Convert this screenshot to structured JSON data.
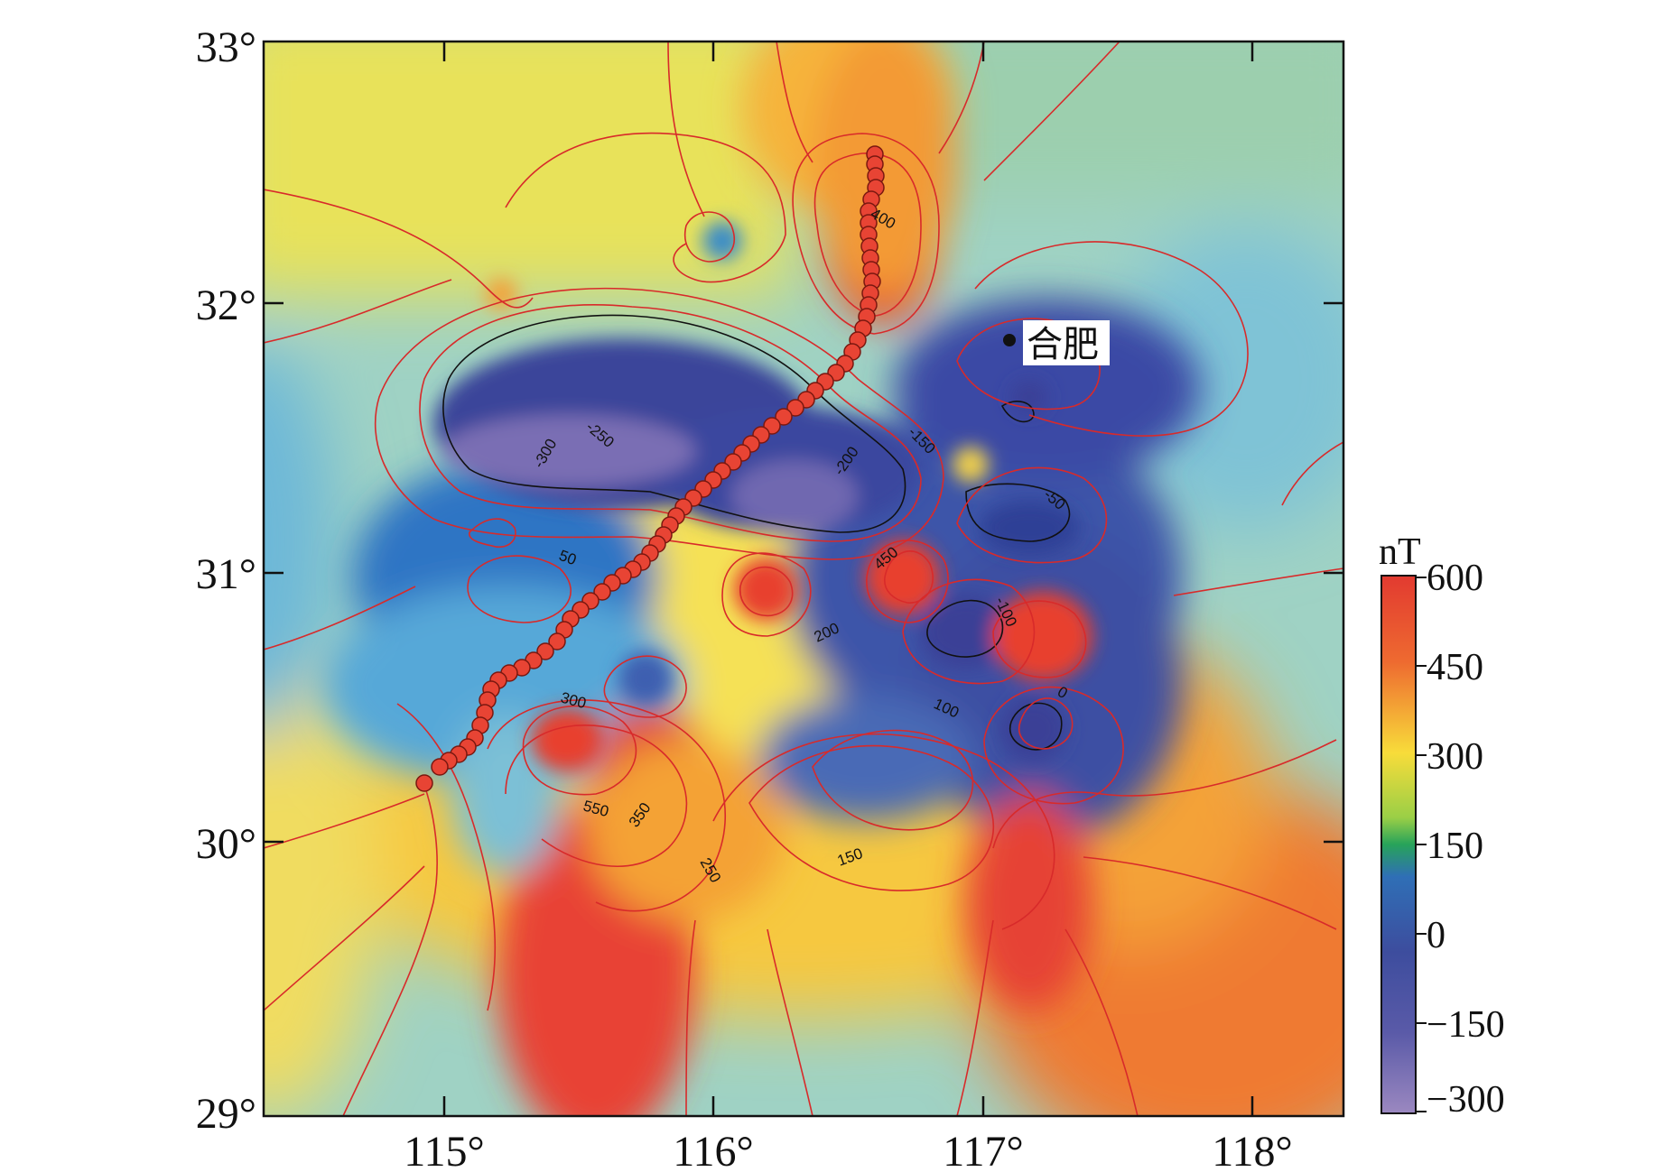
{
  "map": {
    "axis_x_labels": [
      "115°",
      "116°",
      "117°",
      "118°"
    ],
    "axis_y_labels": [
      "33°",
      "32°",
      "31°",
      "30°",
      "29°"
    ],
    "city": {
      "name": "合肥"
    },
    "contour_labels": [
      "400",
      "-300",
      "-250",
      "-200",
      "-150",
      "-50",
      "50",
      "450",
      "-100",
      "200",
      "0",
      "300",
      "100",
      "550",
      "350",
      "250",
      "150"
    ]
  },
  "colorbar": {
    "unit": "nT",
    "tick_labels": [
      "600",
      "450",
      "300",
      "150",
      "0",
      "−150",
      "−300"
    ]
  },
  "colors": {
    "high": "#e03c31",
    "mid_high": "#f7e03c",
    "mid": "#96d4cc",
    "low": "#3a4aa0",
    "lowest": "#8f80b8",
    "contour": "#d82a2a",
    "zero_contour": "#111111",
    "track_marker": "#e84434"
  }
}
